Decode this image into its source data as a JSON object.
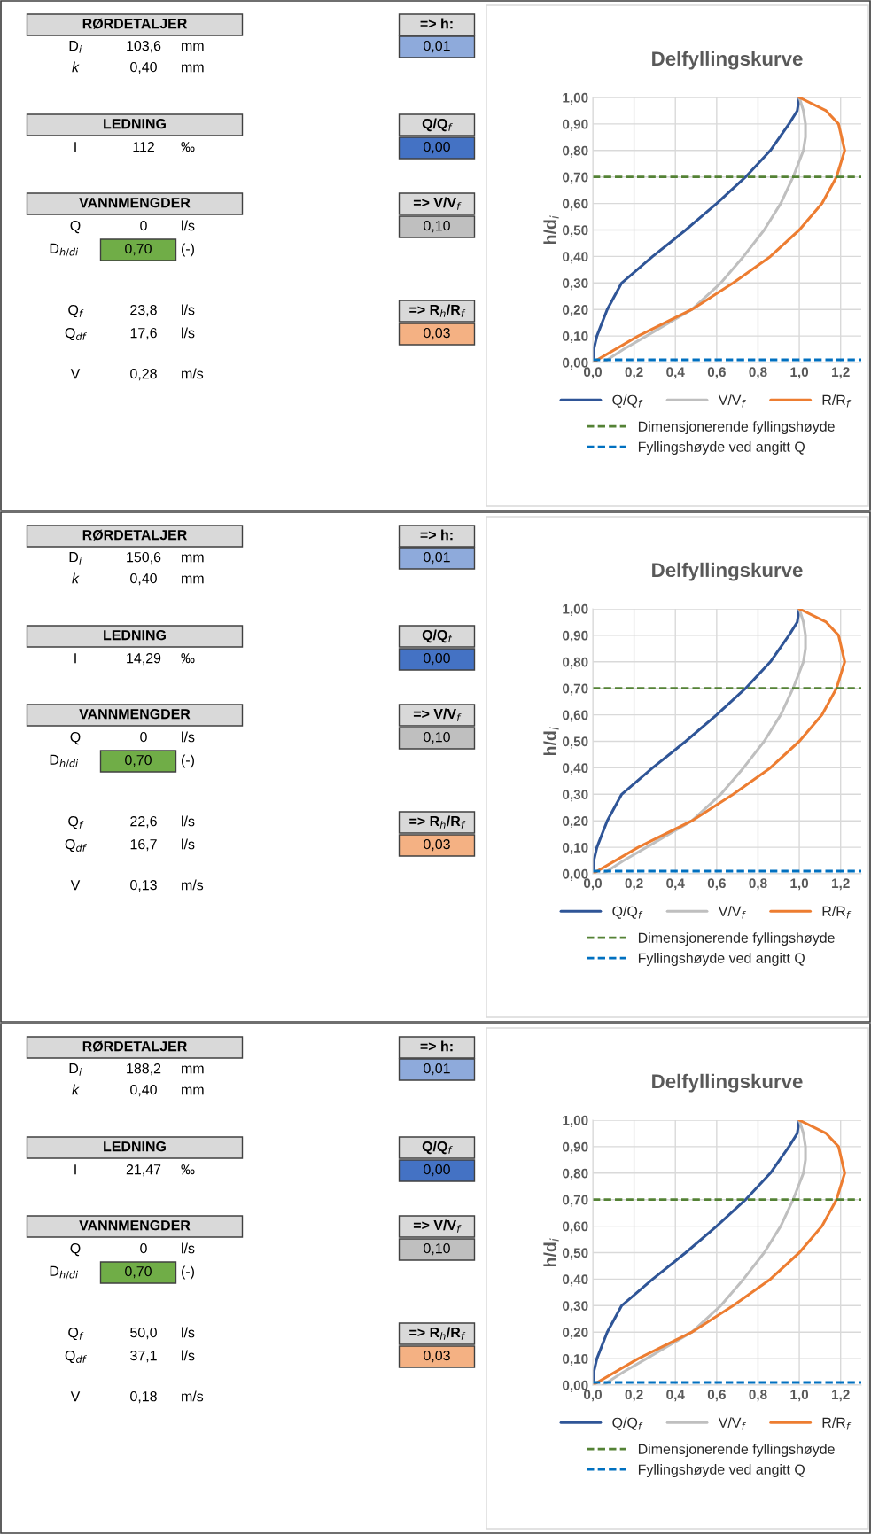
{
  "chart_data": [
    {
      "type": "other",
      "annotations": [
        "RØRDETALJER",
        "D$_{i}$",
        "103,6",
        "mm",
        "k",
        "0,40",
        "mm",
        "LEDNING",
        "I",
        "112",
        "‰",
        "VANNMENGDER",
        "Q",
        "0",
        "l/s",
        "D$_{h/di}$",
        "0,70",
        "(-)",
        "Q$_{f}$",
        "23,8",
        "l/s",
        "Q$_{df}$",
        "17,6",
        "l/s",
        "V",
        "0,28",
        "m/s",
        "=> h:",
        "0,01",
        "Q/Q$_{f}$",
        "0,00",
        "=> V/V$_{f}$",
        "0,10",
        "=> R$_{h}$/R$_{f}$",
        "0,03"
      ],
      "colors": [
        "#d9d9d9",
        "#d9d9d9",
        "#d9d9d9",
        "#70ad47",
        "#d9d9d9",
        "#8eaadb",
        "#d9d9d9",
        "#4472c4",
        "#d9d9d9",
        "#bfbfbf",
        "#d9d9d9",
        "#f4b183"
      ]
    },
    {
      "type": "line",
      "title": "Delfyllingskurve",
      "ylabel": "h/d$_{i}$",
      "xlim": [
        0,
        1.3
      ],
      "ylim": [
        0,
        1
      ],
      "grid": true,
      "legend": "bottom",
      "xticks": [
        {
          "value": 0,
          "label": "0,0"
        },
        {
          "value": 0.2,
          "label": "0,2"
        },
        {
          "value": 0.4,
          "label": "0,4"
        },
        {
          "value": 0.6,
          "label": "0,6"
        },
        {
          "value": 0.8,
          "label": "0,8"
        },
        {
          "value": 1.0,
          "label": "1,0"
        },
        {
          "value": 1.2,
          "label": "1,2"
        }
      ],
      "yticks": [
        {
          "value": 0,
          "label": "0,00"
        },
        {
          "value": 0.1,
          "label": "0,10"
        },
        {
          "value": 0.2,
          "label": "0,20"
        },
        {
          "value": 0.3,
          "label": "0,30"
        },
        {
          "value": 0.4,
          "label": "0,40"
        },
        {
          "value": 0.5,
          "label": "0,50"
        },
        {
          "value": 0.6,
          "label": "0,60"
        },
        {
          "value": 0.7,
          "label": "0,70"
        },
        {
          "value": 0.8,
          "label": "0,80"
        },
        {
          "value": 0.9,
          "label": "0,90"
        },
        {
          "value": 1.0,
          "label": "1,00"
        }
      ],
      "series": [
        {
          "name": "Q/Q$_{f}$",
          "color": "#2f5597",
          "x": [
            0,
            0.005,
            0.02,
            0.07,
            0.14,
            0.29,
            0.45,
            0.6,
            0.74,
            0.86,
            0.95,
            0.99,
            1.0
          ],
          "values": [
            0,
            0.05,
            0.1,
            0.2,
            0.3,
            0.4,
            0.5,
            0.6,
            0.7,
            0.8,
            0.9,
            0.95,
            1.0
          ]
        },
        {
          "name": "V/V$_{f}$",
          "color": "#bfbfbf",
          "x": [
            0.05,
            0.15,
            0.26,
            0.48,
            0.62,
            0.73,
            0.83,
            0.91,
            0.97,
            1.02,
            1.03,
            1.03,
            1.02,
            1.0
          ],
          "values": [
            0,
            0.05,
            0.1,
            0.2,
            0.3,
            0.4,
            0.5,
            0.6,
            0.7,
            0.8,
            0.85,
            0.9,
            0.95,
            1.0
          ]
        },
        {
          "name": "R/R$_{f}$",
          "color": "#ed7d31",
          "x": [
            0,
            0.22,
            0.48,
            0.68,
            0.86,
            1.0,
            1.11,
            1.18,
            1.22,
            1.19,
            1.13,
            1.0
          ],
          "values": [
            0,
            0.1,
            0.2,
            0.3,
            0.4,
            0.5,
            0.6,
            0.7,
            0.8,
            0.9,
            0.95,
            1.0
          ]
        }
      ],
      "ref_lines": [
        {
          "axis": "y",
          "value": 0.7,
          "label": "Dimensjonerende fyllingshøyde",
          "color": "#548235",
          "line_style": "dashed"
        },
        {
          "axis": "y",
          "value": 0.01,
          "label": "Fyllingshøyde ved angitt Q",
          "color": "#0070c0",
          "line_style": "dashed"
        }
      ]
    },
    {
      "type": "other",
      "annotations": [
        "RØRDETALJER",
        "D$_{i}$",
        "150,6",
        "mm",
        "k",
        "0,40",
        "mm",
        "LEDNING",
        "I",
        "14,29",
        "‰",
        "VANNMENGDER",
        "Q",
        "0",
        "l/s",
        "D$_{h/di}$",
        "0,70",
        "(-)",
        "Q$_{f}$",
        "22,6",
        "l/s",
        "Q$_{df}$",
        "16,7",
        "l/s",
        "V",
        "0,13",
        "m/s",
        "=> h:",
        "0,01",
        "Q/Q$_{f}$",
        "0,00",
        "=> V/V$_{f}$",
        "0,10",
        "=> R$_{h}$/R$_{f}$",
        "0,03"
      ],
      "colors": [
        "#d9d9d9",
        "#d9d9d9",
        "#d9d9d9",
        "#70ad47",
        "#d9d9d9",
        "#8eaadb",
        "#d9d9d9",
        "#4472c4",
        "#d9d9d9",
        "#bfbfbf",
        "#d9d9d9",
        "#f4b183"
      ]
    },
    {
      "type": "line",
      "title": "Delfyllingskurve",
      "ylabel": "h/d$_{i}$",
      "xlim": [
        0,
        1.3
      ],
      "ylim": [
        0,
        1
      ],
      "grid": true,
      "legend": "bottom",
      "xticks": [
        {
          "value": 0,
          "label": "0,0"
        },
        {
          "value": 0.2,
          "label": "0,2"
        },
        {
          "value": 0.4,
          "label": "0,4"
        },
        {
          "value": 0.6,
          "label": "0,6"
        },
        {
          "value": 0.8,
          "label": "0,8"
        },
        {
          "value": 1.0,
          "label": "1,0"
        },
        {
          "value": 1.2,
          "label": "1,2"
        }
      ],
      "yticks": [
        {
          "value": 0,
          "label": "0,00"
        },
        {
          "value": 0.1,
          "label": "0,10"
        },
        {
          "value": 0.2,
          "label": "0,20"
        },
        {
          "value": 0.3,
          "label": "0,30"
        },
        {
          "value": 0.4,
          "label": "0,40"
        },
        {
          "value": 0.5,
          "label": "0,50"
        },
        {
          "value": 0.6,
          "label": "0,60"
        },
        {
          "value": 0.7,
          "label": "0,70"
        },
        {
          "value": 0.8,
          "label": "0,80"
        },
        {
          "value": 0.9,
          "label": "0,90"
        },
        {
          "value": 1.0,
          "label": "1,00"
        }
      ],
      "series": [
        {
          "name": "Q/Q$_{f}$",
          "color": "#2f5597",
          "x": [
            0,
            0.005,
            0.02,
            0.07,
            0.14,
            0.29,
            0.45,
            0.6,
            0.74,
            0.86,
            0.95,
            0.99,
            1.0
          ],
          "values": [
            0,
            0.05,
            0.1,
            0.2,
            0.3,
            0.4,
            0.5,
            0.6,
            0.7,
            0.8,
            0.9,
            0.95,
            1.0
          ]
        },
        {
          "name": "V/V$_{f}$",
          "color": "#bfbfbf",
          "x": [
            0.05,
            0.15,
            0.26,
            0.48,
            0.62,
            0.73,
            0.83,
            0.91,
            0.97,
            1.02,
            1.03,
            1.03,
            1.02,
            1.0
          ],
          "values": [
            0,
            0.05,
            0.1,
            0.2,
            0.3,
            0.4,
            0.5,
            0.6,
            0.7,
            0.8,
            0.85,
            0.9,
            0.95,
            1.0
          ]
        },
        {
          "name": "R/R$_{f}$",
          "color": "#ed7d31",
          "x": [
            0,
            0.22,
            0.48,
            0.68,
            0.86,
            1.0,
            1.11,
            1.18,
            1.22,
            1.19,
            1.13,
            1.0
          ],
          "values": [
            0,
            0.1,
            0.2,
            0.3,
            0.4,
            0.5,
            0.6,
            0.7,
            0.8,
            0.9,
            0.95,
            1.0
          ]
        }
      ],
      "ref_lines": [
        {
          "axis": "y",
          "value": 0.7,
          "label": "Dimensjonerende fyllingshøyde",
          "color": "#548235",
          "line_style": "dashed"
        },
        {
          "axis": "y",
          "value": 0.01,
          "label": "Fyllingshøyde ved angitt Q",
          "color": "#0070c0",
          "line_style": "dashed"
        }
      ]
    },
    {
      "type": "other",
      "annotations": [
        "RØRDETALJER",
        "D$_{i}$",
        "188,2",
        "mm",
        "k",
        "0,40",
        "mm",
        "LEDNING",
        "I",
        "21,47",
        "‰",
        "VANNMENGDER",
        "Q",
        "0",
        "l/s",
        "D$_{h/di}$",
        "0,70",
        "(-)",
        "Q$_{f}$",
        "50,0",
        "l/s",
        "Q$_{df}$",
        "37,1",
        "l/s",
        "V",
        "0,18",
        "m/s",
        "=> h:",
        "0,01",
        "Q/Q$_{f}$",
        "0,00",
        "=> V/V$_{f}$",
        "0,10",
        "=> R$_{h}$/R$_{f}$",
        "0,03"
      ],
      "colors": [
        "#d9d9d9",
        "#d9d9d9",
        "#d9d9d9",
        "#70ad47",
        "#d9d9d9",
        "#8eaadb",
        "#d9d9d9",
        "#4472c4",
        "#d9d9d9",
        "#bfbfbf",
        "#d9d9d9",
        "#f4b183"
      ]
    },
    {
      "type": "line",
      "title": "Delfyllingskurve",
      "ylabel": "h/d$_{i}$",
      "xlim": [
        0,
        1.3
      ],
      "ylim": [
        0,
        1
      ],
      "grid": true,
      "legend": "bottom",
      "xticks": [
        {
          "value": 0,
          "label": "0,0"
        },
        {
          "value": 0.2,
          "label": "0,2"
        },
        {
          "value": 0.4,
          "label": "0,4"
        },
        {
          "value": 0.6,
          "label": "0,6"
        },
        {
          "value": 0.8,
          "label": "0,8"
        },
        {
          "value": 1.0,
          "label": "1,0"
        },
        {
          "value": 1.2,
          "label": "1,2"
        }
      ],
      "yticks": [
        {
          "value": 0,
          "label": "0,00"
        },
        {
          "value": 0.1,
          "label": "0,10"
        },
        {
          "value": 0.2,
          "label": "0,20"
        },
        {
          "value": 0.3,
          "label": "0,30"
        },
        {
          "value": 0.4,
          "label": "0,40"
        },
        {
          "value": 0.5,
          "label": "0,50"
        },
        {
          "value": 0.6,
          "label": "0,60"
        },
        {
          "value": 0.7,
          "label": "0,70"
        },
        {
          "value": 0.8,
          "label": "0,80"
        },
        {
          "value": 0.9,
          "label": "0,90"
        },
        {
          "value": 1.0,
          "label": "1,00"
        }
      ],
      "series": [
        {
          "name": "Q/Q$_{f}$",
          "color": "#2f5597",
          "x": [
            0,
            0.005,
            0.02,
            0.07,
            0.14,
            0.29,
            0.45,
            0.6,
            0.74,
            0.86,
            0.95,
            0.99,
            1.0
          ],
          "values": [
            0,
            0.05,
            0.1,
            0.2,
            0.3,
            0.4,
            0.5,
            0.6,
            0.7,
            0.8,
            0.9,
            0.95,
            1.0
          ]
        },
        {
          "name": "V/V$_{f}$",
          "color": "#bfbfbf",
          "x": [
            0.05,
            0.15,
            0.26,
            0.48,
            0.62,
            0.73,
            0.83,
            0.91,
            0.97,
            1.02,
            1.03,
            1.03,
            1.02,
            1.0
          ],
          "values": [
            0,
            0.05,
            0.1,
            0.2,
            0.3,
            0.4,
            0.5,
            0.6,
            0.7,
            0.8,
            0.85,
            0.9,
            0.95,
            1.0
          ]
        },
        {
          "name": "R/R$_{f}$",
          "color": "#ed7d31",
          "x": [
            0,
            0.22,
            0.48,
            0.68,
            0.86,
            1.0,
            1.11,
            1.18,
            1.22,
            1.19,
            1.13,
            1.0
          ],
          "values": [
            0,
            0.1,
            0.2,
            0.3,
            0.4,
            0.5,
            0.6,
            0.7,
            0.8,
            0.9,
            0.95,
            1.0
          ]
        }
      ],
      "ref_lines": [
        {
          "axis": "y",
          "value": 0.7,
          "label": "Dimensjonerende fyllingshøyde",
          "color": "#548235",
          "line_style": "dashed"
        },
        {
          "axis": "y",
          "value": 0.01,
          "label": "Fyllingshøyde ved angitt Q",
          "color": "#0070c0",
          "line_style": "dashed"
        }
      ]
    }
  ]
}
